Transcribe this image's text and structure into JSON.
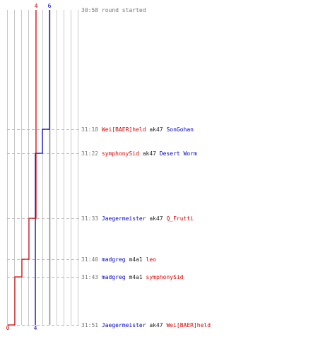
{
  "colors": {
    "team_a": "#0000cc",
    "team_b": "#dd0000",
    "grid": "#c8c8c8",
    "center_line": "#888888",
    "dash": "#bbbbbb",
    "time": "#777777",
    "neutral": "#222222"
  },
  "start_score": {
    "team_a": 6,
    "team_b": 4
  },
  "end_score": {
    "team_a": 4,
    "team_b": 0
  },
  "events": [
    {
      "time": "30:58",
      "type": "text",
      "text": "round started",
      "score_a": 6,
      "score_b": 4
    },
    {
      "time": "31:18",
      "type": "kill",
      "killer": "Wei[BAER]held",
      "killer_team": "team_b",
      "weapon": "ak47",
      "victim": "SonGohan",
      "victim_team": "team_a",
      "score_a": 5,
      "score_b": 4
    },
    {
      "time": "31:22",
      "type": "kill",
      "killer": "symphonySid",
      "killer_team": "team_b",
      "weapon": "ak47",
      "victim": "Desert Worm",
      "victim_team": "team_a",
      "score_a": 4,
      "score_b": 4
    },
    {
      "time": "31:33",
      "type": "kill",
      "killer": "Jaegermeister",
      "killer_team": "team_a",
      "weapon": "ak47",
      "victim": "Q_Frutti",
      "victim_team": "team_b",
      "score_a": 4,
      "score_b": 3
    },
    {
      "time": "31:40",
      "type": "kill",
      "killer": "madgreg",
      "killer_team": "team_a",
      "weapon": "m4a1",
      "victim": "leo",
      "victim_team": "team_b",
      "score_a": 4,
      "score_b": 2
    },
    {
      "time": "31:43",
      "type": "kill",
      "killer": "madgreg",
      "killer_team": "team_a",
      "weapon": "m4a1",
      "victim": "symphonySid",
      "victim_team": "team_b",
      "score_a": 4,
      "score_b": 1
    },
    {
      "time": "31:51",
      "type": "kill",
      "killer": "Jaegermeister",
      "killer_team": "team_a",
      "weapon": "ak47",
      "victim": "Wei[BAER]held",
      "victim_team": "team_b",
      "score_a": 4,
      "score_b": 0
    }
  ]
}
